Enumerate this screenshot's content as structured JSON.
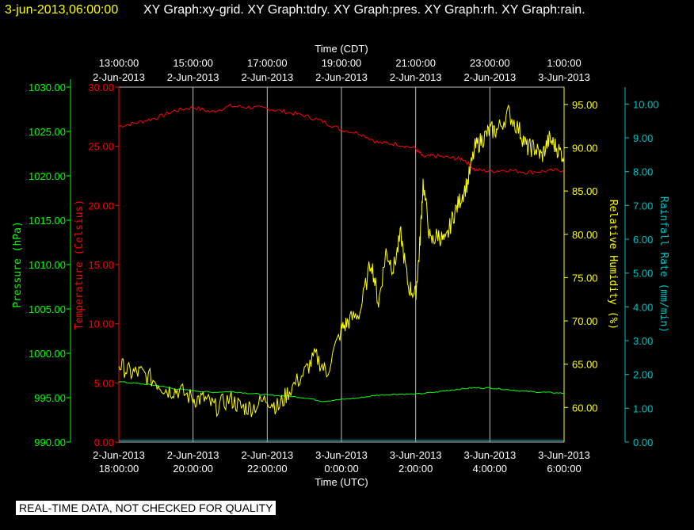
{
  "header": {
    "datetime": "3-jun-2013,06:00:00",
    "graphs": "XY Graph:xy-grid.  XY Graph:tdry.  XY Graph:pres.  XY Graph:rh.  XY Graph:rain."
  },
  "footer": {
    "quality_note": "REAL-TIME DATA, NOT CHECKED FOR QUALITY"
  },
  "colors": {
    "background": "#000000",
    "temperature": "#ff0000",
    "pressure": "#00ff00",
    "humidity": "#ffff00",
    "rainfall": "#00c0c0",
    "grid": "#c0c0c0"
  },
  "chart_data": {
    "type": "line",
    "x_top_label": "Time (CDT)",
    "x_bottom_label": "Time (UTC)",
    "x_top_ticks": [
      [
        "13:00:00",
        "2-Jun-2013"
      ],
      [
        "15:00:00",
        "2-Jun-2013"
      ],
      [
        "17:00:00",
        "2-Jun-2013"
      ],
      [
        "19:00:00",
        "2-Jun-2013"
      ],
      [
        "21:00:00",
        "2-Jun-2013"
      ],
      [
        "23:00:00",
        "2-Jun-2013"
      ],
      [
        "1:00:00",
        "3-Jun-2013"
      ]
    ],
    "x_bottom_ticks": [
      [
        "2-Jun-2013",
        "18:00:00"
      ],
      [
        "2-Jun-2013",
        "20:00:00"
      ],
      [
        "2-Jun-2013",
        "22:00:00"
      ],
      [
        "3-Jun-2013",
        "0:00:00"
      ],
      [
        "3-Jun-2013",
        "2:00:00"
      ],
      [
        "3-Jun-2013",
        "4:00:00"
      ],
      [
        "3-Jun-2013",
        "6:00:00"
      ]
    ],
    "x_range_utc_hours": [
      18,
      30
    ],
    "grid": true,
    "axes": {
      "pressure": {
        "label": "Pressure (hPa)",
        "range": [
          990,
          1030
        ],
        "ticks": [
          "990.00",
          "995.00",
          "1000.00",
          "1005.00",
          "1010.00",
          "1015.00",
          "1020.00",
          "1025.00",
          "1030.00"
        ]
      },
      "temperature": {
        "label": "Temperature (Celsius)",
        "range": [
          0,
          30
        ],
        "ticks": [
          "0.00",
          "5.00",
          "10.00",
          "15.00",
          "20.00",
          "25.00",
          "30.00"
        ]
      },
      "humidity": {
        "label": "Relative Humidity (%)",
        "range": [
          56,
          97
        ],
        "ticks": [
          "60.00",
          "65.00",
          "70.00",
          "75.00",
          "80.00",
          "85.00",
          "90.00",
          "95.00"
        ]
      },
      "rainfall": {
        "label": "Rainfall Rate (mm/min)",
        "range": [
          0,
          10.5
        ],
        "ticks": [
          "0.00",
          "1.00",
          "2.00",
          "3.00",
          "4.00",
          "5.00",
          "6.00",
          "7.00",
          "8.00",
          "9.00",
          "10.00"
        ]
      }
    },
    "series": [
      {
        "name": "tdry",
        "axis": "temperature",
        "x": [
          18,
          18.5,
          19,
          19.5,
          20,
          20.5,
          21,
          21.5,
          22,
          22.5,
          23,
          23.5,
          24,
          24.5,
          25,
          25.5,
          26,
          26.2,
          26.5,
          27,
          27.3,
          27.6,
          28,
          28.5,
          29,
          29.5,
          30
        ],
        "y": [
          26.7,
          27.0,
          27.4,
          28.0,
          28.3,
          27.9,
          28.4,
          28.3,
          28.2,
          27.9,
          27.6,
          27.1,
          26.4,
          26.1,
          25.3,
          25.2,
          24.8,
          24.1,
          24.2,
          24.0,
          23.9,
          23.0,
          22.9,
          23.0,
          22.8,
          22.9,
          23.0
        ]
      },
      {
        "name": "pres",
        "axis": "pressure",
        "x": [
          18,
          18.5,
          19,
          19.5,
          20,
          20.5,
          21,
          21.5,
          22,
          22.5,
          23,
          23.5,
          24,
          24.5,
          25,
          25.5,
          26,
          26.5,
          27,
          27.5,
          28,
          28.5,
          29,
          29.5,
          30
        ],
        "y": [
          996.8,
          996.6,
          996.4,
          996.0,
          995.8,
          995.6,
          995.7,
          995.5,
          995.3,
          995.2,
          995.0,
          994.6,
          994.8,
          995.0,
          995.3,
          995.4,
          995.4,
          995.6,
          995.9,
          996.1,
          996.1,
          995.9,
          995.7,
          995.6,
          995.5
        ]
      },
      {
        "name": "rh",
        "axis": "humidity",
        "x": [
          18,
          18.3,
          18.6,
          19,
          19.3,
          19.6,
          20,
          20.3,
          20.6,
          21,
          21.3,
          21.6,
          22,
          22.3,
          22.6,
          23,
          23.3,
          23.6,
          24,
          24.2,
          24.5,
          24.8,
          25,
          25.2,
          25.4,
          25.6,
          25.8,
          26,
          26.1,
          26.2,
          26.4,
          26.6,
          26.8,
          27,
          27.2,
          27.4,
          27.6,
          27.8,
          28,
          28.2,
          28.5,
          28.8,
          29,
          29.2,
          29.4,
          29.6,
          29.8,
          30
        ],
        "y": [
          65,
          64,
          64,
          63,
          62,
          62,
          61,
          61,
          60,
          61,
          60,
          60,
          61,
          60,
          62,
          64,
          66,
          64,
          69,
          70,
          71,
          77,
          72,
          78,
          76,
          80,
          74,
          73,
          78,
          86,
          79,
          80,
          79,
          82,
          84,
          86,
          90,
          91,
          92,
          92,
          94,
          92,
          90,
          90,
          89,
          91,
          90,
          89
        ]
      },
      {
        "name": "rain",
        "axis": "rainfall",
        "x": [
          18,
          30
        ],
        "y": [
          0.05,
          0.05
        ]
      }
    ]
  }
}
